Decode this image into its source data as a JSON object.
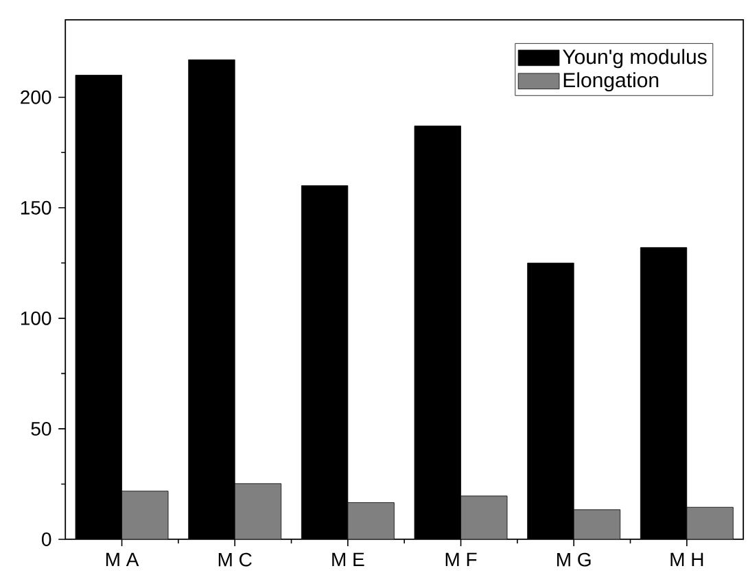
{
  "chart_data": {
    "type": "bar",
    "categories": [
      "M A",
      "M C",
      "M E",
      "M F",
      "M G",
      "M H"
    ],
    "series": [
      {
        "name": "Youn'g modulus",
        "color": "#000000",
        "values": [
          210,
          217,
          160,
          187,
          125,
          132
        ]
      },
      {
        "name": "Elongation",
        "color": "#808080",
        "values": [
          21.8,
          25.2,
          16.6,
          19.6,
          13.4,
          14.5
        ]
      }
    ],
    "ylim": [
      0,
      235
    ],
    "yticks": [
      0,
      50,
      100,
      150,
      200
    ],
    "legend": "top right",
    "grid": false
  }
}
